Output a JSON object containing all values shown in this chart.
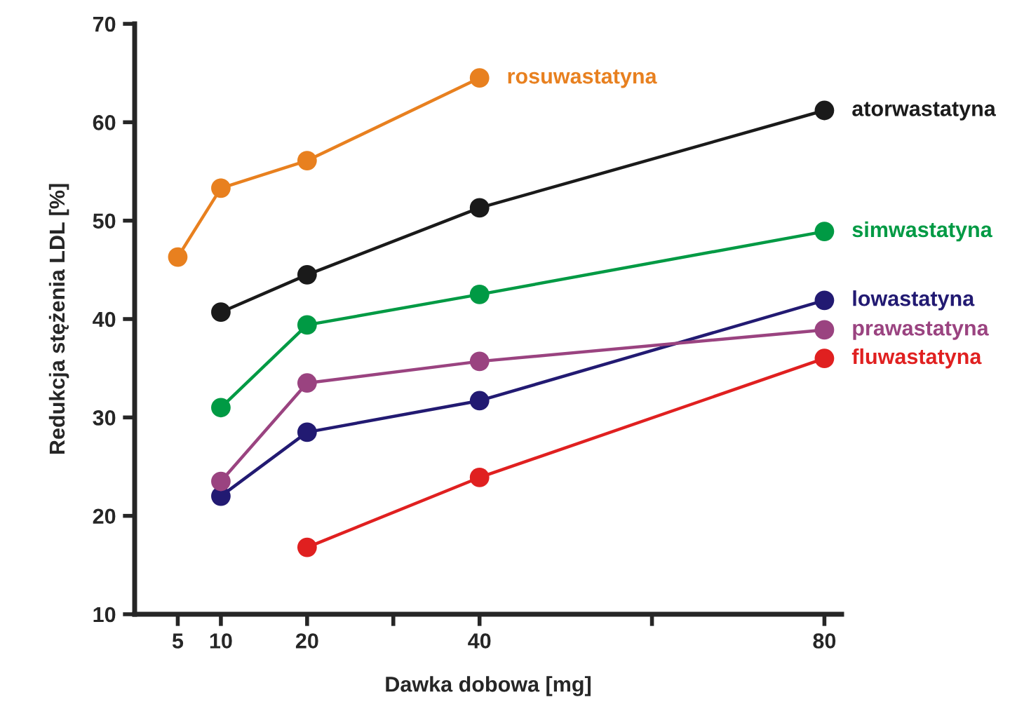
{
  "chart_data": {
    "type": "line",
    "xlabel": "Dawka dobowa [mg]",
    "ylabel": "Redukcja stężenia LDL [%]",
    "xlim": [
      0,
      82
    ],
    "xticks": [
      5,
      10,
      20,
      {
        "value": 30,
        "label": null
      },
      40,
      {
        "value": 60,
        "label": null
      },
      80
    ],
    "ylim": [
      10,
      70
    ],
    "yticks": [
      10,
      20,
      30,
      40,
      50,
      60,
      70
    ],
    "grid": false,
    "legend": false,
    "marker": "circle",
    "line_style": "solid",
    "series": [
      {
        "name": "rosuwastatyna",
        "color": "#e8801f",
        "x": [
          5,
          10,
          20,
          40
        ],
        "values": [
          46.3,
          53.3,
          56.1,
          64.5
        ]
      },
      {
        "name": "atorwastatyna",
        "color": "#1a1a1a",
        "x": [
          10,
          20,
          40,
          80
        ],
        "values": [
          40.7,
          44.5,
          51.3,
          61.2
        ]
      },
      {
        "name": "simwastatyna",
        "color": "#009a44",
        "x": [
          10,
          20,
          40,
          80
        ],
        "values": [
          31,
          39.4,
          42.5,
          48.9
        ]
      },
      {
        "name": "lowastatyna",
        "color": "#221a72",
        "x": [
          10,
          20,
          40,
          80
        ],
        "values": [
          22.0,
          28.5,
          31.7,
          41.9
        ]
      },
      {
        "name": "prawastatyna",
        "color": "#9a4380",
        "x": [
          10,
          20,
          40,
          80
        ],
        "values": [
          23.5,
          33.5,
          35.7,
          38.9
        ]
      },
      {
        "name": "fluwastatyna",
        "color": "#e02020",
        "x": [
          20,
          40,
          80
        ],
        "values": [
          16.8,
          23.9,
          36.0
        ]
      }
    ]
  }
}
